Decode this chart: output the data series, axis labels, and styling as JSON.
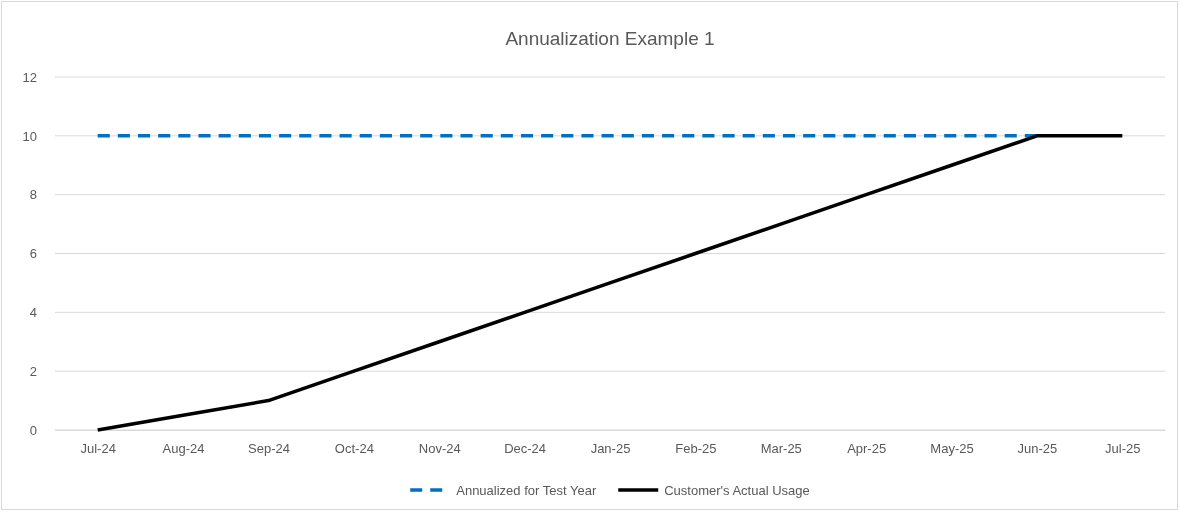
{
  "chart_data": {
    "type": "line",
    "title": "Annualization Example 1",
    "categories": [
      "Jul-24",
      "Aug-24",
      "Sep-24",
      "Oct-24",
      "Nov-24",
      "Dec-24",
      "Jan-25",
      "Feb-25",
      "Mar-25",
      "Apr-25",
      "May-25",
      "Jun-25",
      "Jul-25"
    ],
    "series": [
      {
        "name": "Annualized for Test Year",
        "color": "#0070c0",
        "line_style": "dashed",
        "values": [
          10,
          10,
          10,
          10,
          10,
          10,
          10,
          10,
          10,
          10,
          10,
          10,
          null
        ]
      },
      {
        "name": "Customer's Actual Usage",
        "color": "#000000",
        "line_style": "solid",
        "values": [
          0,
          0.5,
          1,
          2,
          3,
          4,
          5,
          6,
          7,
          8,
          9,
          10,
          10
        ]
      }
    ],
    "ylim": [
      0,
      12
    ],
    "yticks": [
      0,
      2,
      4,
      6,
      8,
      10,
      12
    ],
    "grid": "y",
    "legend": "bottom",
    "marker": "none"
  }
}
